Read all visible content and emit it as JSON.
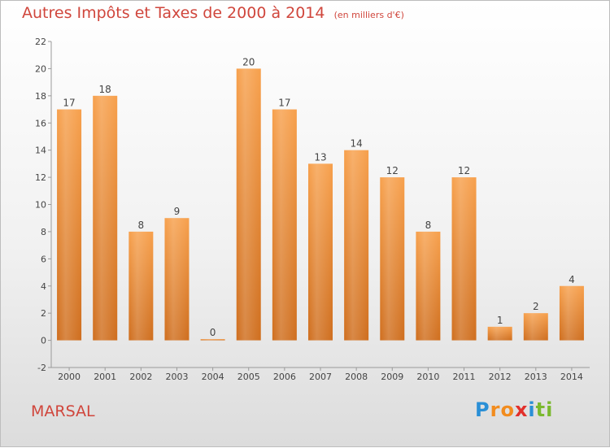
{
  "chart_data": {
    "type": "bar",
    "title": "Autres Impôts et Taxes de 2000 à 2014",
    "subtitle": "(en milliers d'€)",
    "categories": [
      "2000",
      "2001",
      "2002",
      "2003",
      "2004",
      "2005",
      "2006",
      "2007",
      "2008",
      "2009",
      "2010",
      "2011",
      "2012",
      "2013",
      "2014"
    ],
    "values": [
      17,
      18,
      8,
      9,
      0,
      20,
      17,
      13,
      14,
      12,
      8,
      12,
      1,
      2,
      4
    ],
    "ylim": [
      -2,
      22
    ],
    "yticks": [
      -2,
      0,
      2,
      4,
      6,
      8,
      10,
      12,
      14,
      16,
      18,
      20,
      22
    ],
    "grid": false,
    "bar_color": "#f0923a"
  },
  "commune": "MARSAL",
  "logo": {
    "letters": [
      "P",
      "r",
      "o",
      "x",
      "i",
      "t",
      "i"
    ],
    "colors": [
      "#2a8fd6",
      "#f28c1e",
      "#f28c1e",
      "#e2302b",
      "#2a8fd6",
      "#7ab92f",
      "#7ab92f"
    ]
  }
}
